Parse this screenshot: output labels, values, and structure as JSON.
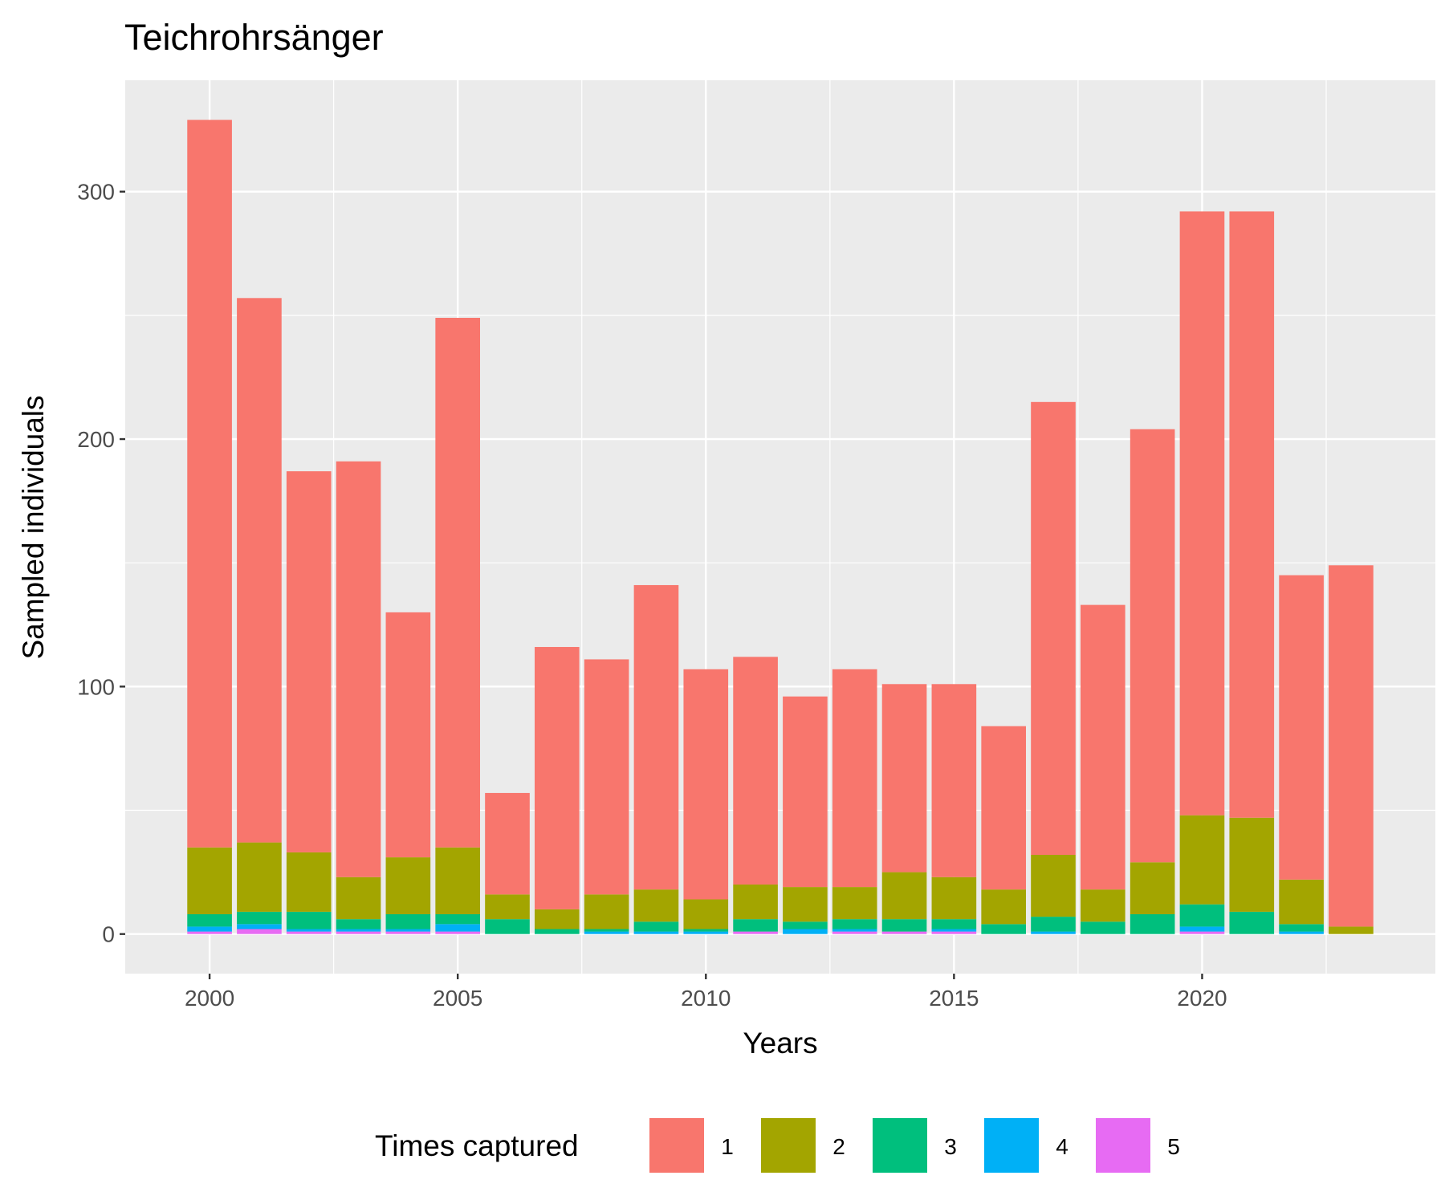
{
  "chart_data": {
    "type": "bar",
    "stacked": true,
    "title": "Teichrohrsänger",
    "xlabel": "Years",
    "ylabel": "Sampled individuals",
    "x": [
      2000,
      2001,
      2002,
      2003,
      2004,
      2005,
      2006,
      2007,
      2008,
      2009,
      2010,
      2011,
      2012,
      2013,
      2014,
      2015,
      2016,
      2017,
      2018,
      2019,
      2020,
      2021,
      2022,
      2023
    ],
    "x_ticks": [
      "2000",
      "2005",
      "2010",
      "2015",
      "2020"
    ],
    "y_ticks": [
      "0",
      "100",
      "200",
      "300"
    ],
    "xlim": [
      1998.3,
      2024.7
    ],
    "ylim": [
      -16,
      345
    ],
    "grid": true,
    "legend": {
      "title": "Times captured",
      "position": "bottom"
    },
    "series": [
      {
        "name": "1",
        "color": "#F8766D",
        "values": [
          294,
          220,
          154,
          168,
          99,
          214,
          41,
          106,
          95,
          123,
          93,
          92,
          77,
          88,
          76,
          78,
          66,
          183,
          115,
          175,
          244,
          245,
          123,
          146
        ]
      },
      {
        "name": "2",
        "color": "#A3A500",
        "values": [
          27,
          28,
          24,
          17,
          23,
          27,
          10,
          8,
          14,
          13,
          12,
          14,
          14,
          13,
          19,
          17,
          14,
          25,
          13,
          21,
          36,
          38,
          18,
          3
        ]
      },
      {
        "name": "3",
        "color": "#00BF7D",
        "values": [
          5,
          5,
          7,
          4,
          6,
          4,
          6,
          2,
          1,
          4,
          1,
          5,
          3,
          4,
          5,
          4,
          4,
          6,
          5,
          8,
          9,
          9,
          3,
          0
        ]
      },
      {
        "name": "4",
        "color": "#00B0F6",
        "values": [
          2,
          2,
          1,
          1,
          1,
          3,
          0,
          0,
          1,
          1,
          1,
          0,
          2,
          1,
          0,
          1,
          0,
          1,
          0,
          0,
          2,
          0,
          1,
          0
        ]
      },
      {
        "name": "5",
        "color": "#E76BF3",
        "values": [
          1,
          2,
          1,
          1,
          1,
          1,
          0,
          0,
          0,
          0,
          0,
          1,
          0,
          1,
          1,
          1,
          0,
          0,
          0,
          0,
          1,
          0,
          0,
          0
        ]
      }
    ]
  }
}
